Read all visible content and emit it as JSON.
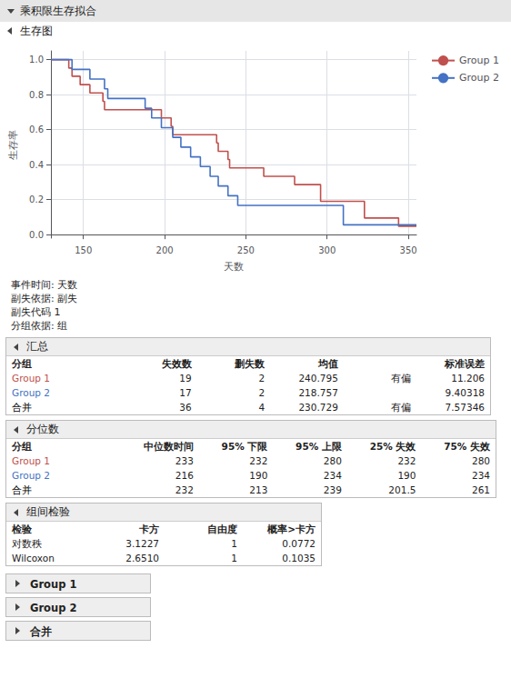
{
  "chart_data": {
    "type": "step",
    "title": "乘积限生存拟合",
    "subtitle": "生存图",
    "xlabel": "天数",
    "ylabel": "生存率",
    "xlim": [
      130,
      355
    ],
    "ylim": [
      -0.02,
      1.05
    ],
    "xticks": [
      150,
      200,
      250,
      300,
      350
    ],
    "yticks": [
      {
        "value": 0,
        "label": "0.0"
      },
      0.2,
      0.4,
      0.6,
      0.8,
      {
        "value": 1.0,
        "label": "1.0"
      }
    ],
    "grid": true,
    "legend": "upper right",
    "series": [
      {
        "name": "Group 1",
        "color": "#C0504D",
        "x": [
          130,
          141,
          143,
          148,
          154,
          162,
          163,
          198,
          204,
          205,
          232,
          233,
          239,
          240,
          261,
          280,
          296,
          323,
          344,
          355
        ],
        "values": [
          1.0,
          0.952,
          0.905,
          0.857,
          0.81,
          0.762,
          0.714,
          0.667,
          0.619,
          0.571,
          0.524,
          0.476,
          0.429,
          0.381,
          0.333,
          0.286,
          0.19,
          0.095,
          0.048,
          0.048
        ]
      },
      {
        "name": "Group 2",
        "color": "#4472C4",
        "x": [
          130,
          143,
          154,
          163,
          165,
          188,
          192,
          198,
          205,
          210,
          216,
          222,
          228,
          233,
          239,
          245,
          310,
          355
        ],
        "values": [
          1.0,
          0.944,
          0.889,
          0.833,
          0.778,
          0.722,
          0.667,
          0.611,
          0.556,
          0.5,
          0.444,
          0.389,
          0.333,
          0.278,
          0.222,
          0.167,
          0.056,
          0.056
        ]
      }
    ],
    "annotations": [
      "事件时间: 天数",
      "副失依据: 副失",
      "副失代码 1",
      "分组依据: 组"
    ],
    "tables": [
      {
        "title": "汇总",
        "columns": [
          "分组",
          "失效数",
          "删失数",
          "均值",
          null,
          "标准误差"
        ],
        "rows": [
          [
            "Group 1",
            "19",
            "2",
            "240.795",
            "有偏",
            "11.206"
          ],
          [
            "Group 2",
            "17",
            "2",
            "218.757",
            null,
            "9.40318"
          ],
          [
            "合并",
            "36",
            "4",
            "230.729",
            "有偏",
            "7.57346"
          ]
        ],
        "row_colors": [
          "#C0504D",
          "#4472C4",
          "#000000"
        ]
      },
      {
        "title": "分位数",
        "columns": [
          "分组",
          "中位数时间",
          "95% 下限",
          "95% 上限",
          "25% 失效",
          "75% 失效"
        ],
        "rows": [
          [
            "Group 1",
            "233",
            "232",
            "280",
            "232",
            "280"
          ],
          [
            "Group 2",
            "216",
            "190",
            "234",
            "190",
            "234"
          ],
          [
            "合并",
            "232",
            "213",
            "239",
            "201.5",
            "261"
          ]
        ],
        "row_colors": [
          "#C0504D",
          "#4472C4",
          "#000000"
        ]
      },
      {
        "title": "组间检验",
        "columns": [
          "检验",
          "卡方",
          "自由度",
          "概率>卡方"
        ],
        "rows": [
          [
            "对数秩",
            "3.1227",
            "1",
            "0.0772"
          ],
          [
            "Wilcoxon",
            "2.6510",
            "1",
            "0.1035"
          ]
        ]
      }
    ],
    "buttons": [
      "Group 1",
      "Group 2",
      "合并"
    ]
  }
}
